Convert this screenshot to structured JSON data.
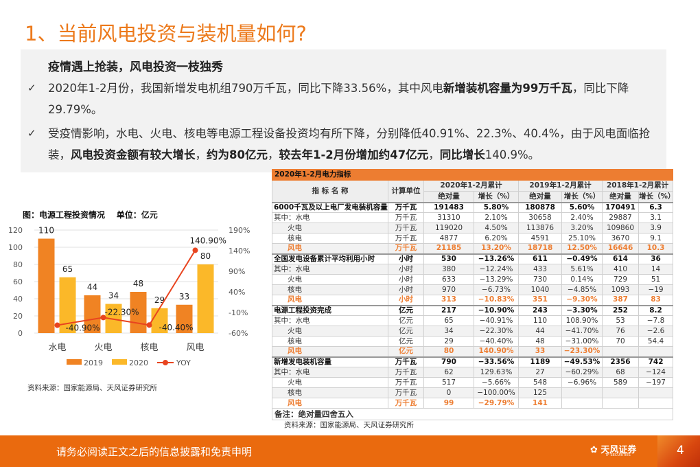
{
  "title": "1、当前风电投资与装机量如何?",
  "intro": {
    "heading": "疫情遇上抢装，风电投资一枝独秀",
    "bullets": [
      {
        "parts": [
          {
            "t": "2020年1-2月份，我国新增发电机组790万千瓦，同比下降33.56%，其中风电"
          },
          {
            "t": "新增装机容量为99万千瓦",
            "b": true
          },
          {
            "t": "，同比下降29.79%。"
          }
        ]
      },
      {
        "parts": [
          {
            "t": "受疫情影响，水电、火电、核电等电源工程设备投资均有所下降，分别降低40.91%、22.3%、40.4%，由于风电面临抢装，"
          },
          {
            "t": "风电投资金额有较大增长",
            "b": true
          },
          {
            "t": "，"
          },
          {
            "t": "约为80亿元",
            "b": true
          },
          {
            "t": "，"
          },
          {
            "t": "较去年1-2月份增加约47亿元",
            "b": true
          },
          {
            "t": "，"
          },
          {
            "t": "同比增长",
            "b": true
          },
          {
            "t": "140.9%。"
          }
        ]
      }
    ],
    "check_icon": "checkmark-icon"
  },
  "chart_title": "图：电源工程投资情况    单位：亿元",
  "chart_source": "资料来源：国家能源局、天风证券研究所",
  "chart_data": {
    "type": "bar+line",
    "categories": [
      "水电",
      "火电",
      "核电",
      "风电"
    ],
    "series": [
      {
        "name": "2019",
        "type": "bar",
        "color": "#f08323",
        "values": [
          110,
          44,
          48,
          33
        ]
      },
      {
        "name": "2020",
        "type": "bar",
        "color": "#fbb829",
        "values": [
          65,
          34,
          29,
          80
        ]
      },
      {
        "name": "YOY",
        "type": "line",
        "axis": "right",
        "color": "#e8441f",
        "values": [
          -40.9,
          -22.3,
          -40.4,
          140.9
        ],
        "labels": [
          "-40.90%",
          "-22.30%",
          "-40.40%",
          "140.90%"
        ]
      }
    ],
    "ylim": [
      0,
      120
    ],
    "yticks": [
      "0",
      "20",
      "40",
      "60",
      "80",
      "100",
      "120"
    ],
    "y2lim": [
      -60,
      190
    ],
    "y2ticks": [
      "-60%",
      "-10%",
      "40%",
      "90%",
      "140%",
      "190%"
    ],
    "grid": true,
    "legend": "bottom"
  },
  "table": {
    "caption": "2020年1-2月电力指标",
    "headers": {
      "name": "指 标 名 称",
      "unit": "计算单位",
      "y2020": "2020年1-2月累计",
      "y2019": "2019年1-2月累计",
      "y2018": "2018年1-2月累计",
      "abs": "绝对量",
      "pct": "增长（%）"
    },
    "rows": [
      {
        "k": "main",
        "c": [
          "6000千瓦及以上电厂发电装机容量",
          "万千瓦",
          "191483",
          "5.80%",
          "180878",
          "5.60%",
          "170491",
          "6.3"
        ]
      },
      {
        "k": "sub",
        "c": [
          "其中：水电",
          "万千瓦",
          "31310",
          "2.10%",
          "30658",
          "2.40%",
          "29887",
          "3.1"
        ]
      },
      {
        "k": "ind",
        "c": [
          "火电",
          "万千瓦",
          "119020",
          "4.50%",
          "113876",
          "3.20%",
          "109860",
          "3.9"
        ]
      },
      {
        "k": "ind",
        "c": [
          "核电",
          "万千瓦",
          "4877",
          "6.20%",
          "4591",
          "25.10%",
          "3670",
          "9.1"
        ]
      },
      {
        "k": "wind",
        "c": [
          "风电",
          "万千瓦",
          "21185",
          "13.20%",
          "18718",
          "12.50%",
          "16646",
          "10.3"
        ]
      },
      {
        "k": "main",
        "c": [
          "全国发电设备累计平均利用小时",
          "小时",
          "530",
          "−13.26%",
          "611",
          "−0.49%",
          "614",
          "36"
        ]
      },
      {
        "k": "sub",
        "c": [
          "其中：水电",
          "小时",
          "380",
          "−12.24%",
          "433",
          "5.61%",
          "410",
          "14"
        ]
      },
      {
        "k": "ind",
        "c": [
          "火电",
          "小时",
          "633",
          "−13.29%",
          "730",
          "0.14%",
          "729",
          "51"
        ]
      },
      {
        "k": "ind",
        "c": [
          "核电",
          "小时",
          "970",
          "−6.73%",
          "1040",
          "−4.85%",
          "1093",
          "−19"
        ]
      },
      {
        "k": "wind",
        "c": [
          "风电",
          "小时",
          "313",
          "−10.83%",
          "351",
          "−9.30%",
          "387",
          "83"
        ]
      },
      {
        "k": "main",
        "c": [
          "电源工程投资完成",
          "亿元",
          "217",
          "−10.90%",
          "243",
          "−3.30%",
          "252",
          "8.2"
        ]
      },
      {
        "k": "sub",
        "c": [
          "其中：水电",
          "亿元",
          "65",
          "−40.91%",
          "110",
          "108.90%",
          "53",
          "−7.8"
        ]
      },
      {
        "k": "ind",
        "c": [
          "火电",
          "亿元",
          "34",
          "−22.30%",
          "44",
          "−41.70%",
          "76",
          "−2.6"
        ]
      },
      {
        "k": "ind",
        "c": [
          "核电",
          "亿元",
          "29",
          "−40.40%",
          "48",
          "−31.00%",
          "70",
          "54.4"
        ]
      },
      {
        "k": "wind",
        "c": [
          "风电",
          "亿元",
          "80",
          "140.90%",
          "33",
          "−23.30%",
          "",
          ""
        ]
      },
      {
        "k": "main",
        "c": [
          "新增发电装机容量",
          "万千瓦",
          "790",
          "−33.56%",
          "1189",
          "−49.53%",
          "2356",
          "742"
        ]
      },
      {
        "k": "sub",
        "c": [
          "其中：水电",
          "万千瓦",
          "62",
          "129.63%",
          "27",
          "−60.29%",
          "68",
          "−124"
        ]
      },
      {
        "k": "ind",
        "c": [
          "火电",
          "万千瓦",
          "517",
          "−5.66%",
          "548",
          "−6.96%",
          "589",
          "−197"
        ]
      },
      {
        "k": "ind",
        "c": [
          "核电",
          "万千瓦",
          "0",
          "−100.00%",
          "125",
          "",
          "",
          " "
        ]
      },
      {
        "k": "wind",
        "c": [
          "风电",
          "万千瓦",
          "99",
          "−29.79%",
          "141",
          "",
          "",
          ""
        ]
      }
    ],
    "note": "备注：绝对量四舍五入",
    "source": "资料来源：国家能源局、天风证券研究所"
  },
  "footer": {
    "disclaimer": "请务必阅读正文之后的信息披露和免责申明",
    "logo_text": "天风证券",
    "logo_sub": "TF SECURITIES",
    "page": "4",
    "logo_icon": "flower-logo-icon"
  }
}
